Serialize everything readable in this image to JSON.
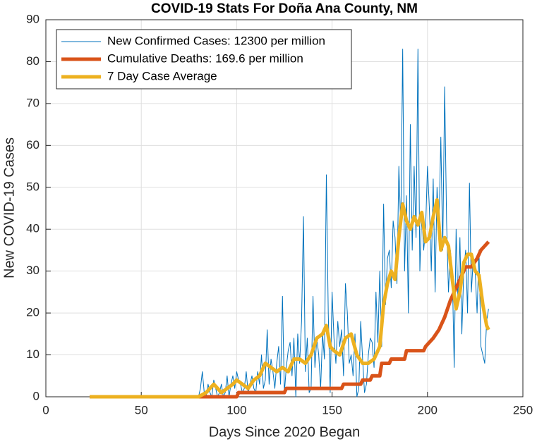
{
  "chart_data": {
    "type": "line",
    "title": "COVID-19 Stats For Doña Ana County, NM",
    "xlabel": "Days Since 2020 Began",
    "ylabel": "New COVID-19 Cases",
    "xlim": [
      0,
      250
    ],
    "xticks": [
      0,
      50,
      100,
      150,
      200,
      250
    ],
    "ylim": [
      0,
      90
    ],
    "yticks": [
      0,
      10,
      20,
      30,
      40,
      50,
      60,
      70,
      80,
      90
    ],
    "grid": true,
    "legend": "upper left",
    "series": [
      {
        "name": "New Confirmed Cases: 12300 per million",
        "color": "#0072BD",
        "width": 1,
        "x": [
          23,
          79,
          80,
          81,
          82,
          83,
          84,
          85,
          86,
          87,
          88,
          89,
          90,
          91,
          92,
          93,
          94,
          95,
          96,
          97,
          98,
          99,
          100,
          101,
          102,
          103,
          104,
          105,
          106,
          107,
          108,
          109,
          110,
          111,
          112,
          113,
          114,
          115,
          116,
          117,
          118,
          119,
          120,
          121,
          122,
          123,
          124,
          125,
          126,
          127,
          128,
          129,
          130,
          131,
          132,
          133,
          134,
          135,
          136,
          137,
          138,
          139,
          140,
          141,
          142,
          143,
          144,
          145,
          146,
          147,
          148,
          149,
          150,
          151,
          152,
          153,
          154,
          155,
          156,
          157,
          158,
          159,
          160,
          161,
          162,
          163,
          164,
          165,
          166,
          167,
          168,
          169,
          170,
          171,
          172,
          173,
          174,
          175,
          176,
          177,
          178,
          179,
          180,
          181,
          182,
          183,
          184,
          185,
          186,
          187,
          188,
          189,
          190,
          191,
          192,
          193,
          194,
          195,
          196,
          197,
          198,
          199,
          200,
          201,
          202,
          203,
          204,
          205,
          206,
          207,
          208,
          209,
          210,
          211,
          212,
          213,
          214,
          215,
          216,
          217,
          218,
          219,
          220,
          221,
          222,
          223,
          224,
          225,
          226,
          227,
          228,
          229,
          230,
          231,
          232
        ],
        "values": [
          0,
          0,
          0,
          2,
          6,
          1,
          0,
          3,
          1,
          0,
          4,
          2,
          0,
          1,
          3,
          0,
          1,
          5,
          0,
          3,
          5,
          2,
          6,
          4,
          3,
          1,
          2,
          6,
          1,
          3,
          5,
          2,
          1,
          6,
          3,
          10,
          2,
          4,
          16,
          3,
          9,
          6,
          2,
          8,
          12,
          3,
          24,
          1,
          7,
          11,
          13,
          5,
          14,
          0,
          15,
          8,
          18,
          43,
          6,
          14,
          1,
          2,
          24,
          7,
          14,
          10,
          2,
          15,
          9,
          53,
          20,
          1,
          25,
          14,
          8,
          18,
          12,
          16,
          5,
          27,
          20,
          8,
          10,
          5,
          15,
          0,
          2,
          18,
          9,
          1,
          3,
          10,
          14,
          13,
          7,
          25,
          13,
          30,
          12,
          46,
          22,
          33,
          35,
          26,
          42,
          38,
          27,
          55,
          40,
          83,
          30,
          48,
          20,
          65,
          35,
          55,
          38,
          83,
          30,
          44,
          35,
          40,
          55,
          45,
          30,
          52,
          25,
          50,
          40,
          62,
          35,
          74,
          42,
          25,
          35,
          30,
          7,
          40,
          22,
          38,
          15,
          30,
          35,
          20,
          51,
          25,
          33,
          30,
          20,
          35,
          12,
          10,
          8,
          18,
          21
        ]
      },
      {
        "name": "Cumulative Deaths: 169.6 per million",
        "color": "#D95319",
        "width": 5,
        "x": [
          23,
          100,
          101,
          125,
          126,
          155,
          156,
          165,
          166,
          170,
          171,
          175,
          176,
          180,
          181,
          188,
          189,
          198,
          199,
          203,
          206,
          209,
          212,
          215,
          218,
          220,
          223,
          226,
          228,
          230,
          232
        ],
        "values": [
          0,
          0,
          1,
          1,
          2,
          2,
          3,
          3,
          4,
          4,
          5,
          5,
          8,
          8,
          9,
          9,
          11,
          11,
          12,
          14,
          16,
          19,
          23,
          26,
          29,
          31,
          31,
          33,
          35,
          36,
          37
        ]
      },
      {
        "name": "7 Day Case Average",
        "color": "#EDB120",
        "width": 5,
        "x": [
          23,
          80,
          84,
          86,
          88,
          90,
          92,
          95,
          98,
          100,
          103,
          106,
          109,
          112,
          115,
          118,
          121,
          124,
          127,
          130,
          133,
          136,
          139,
          142,
          145,
          147,
          149,
          151,
          154,
          157,
          160,
          163,
          166,
          169,
          172,
          175,
          177,
          179,
          181,
          183,
          185,
          187,
          189,
          191,
          193,
          195,
          197,
          199,
          201,
          203,
          205,
          207,
          209,
          211,
          213,
          215,
          217,
          219,
          221,
          223,
          225,
          227,
          229,
          231,
          232
        ],
        "values": [
          0,
          0,
          1,
          2,
          3,
          2,
          1,
          2,
          3,
          4,
          3,
          2,
          4,
          5,
          8,
          7,
          6,
          7,
          6,
          9,
          9,
          8,
          10,
          14,
          15,
          17,
          12,
          11,
          10,
          14,
          15,
          10,
          8,
          8,
          9,
          12,
          22,
          27,
          30,
          28,
          38,
          46,
          42,
          40,
          43,
          41,
          44,
          37,
          38,
          43,
          47,
          35,
          38,
          36,
          28,
          21,
          25,
          32,
          34,
          34,
          30,
          29,
          22,
          17,
          16
        ]
      }
    ]
  }
}
